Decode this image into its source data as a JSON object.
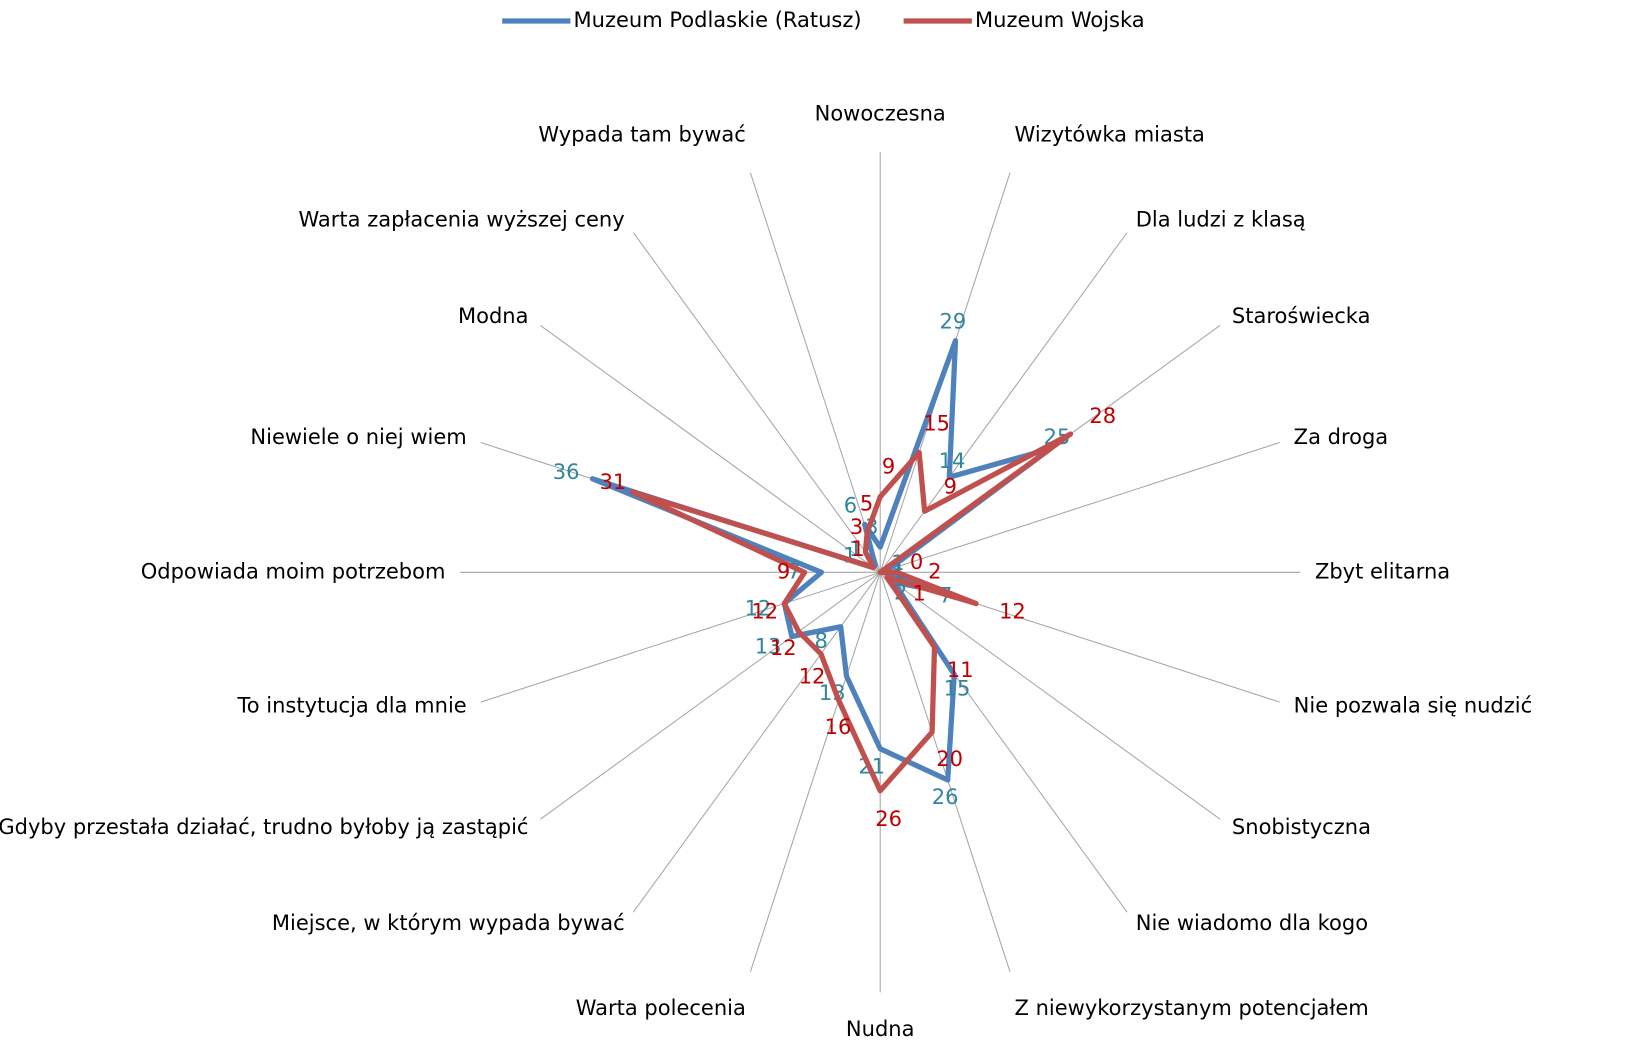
{
  "chart_data": {
    "type": "radar",
    "categories": [
      "Nowoczesna",
      "Wizytówka miasta",
      "Dla ludzi z klasą",
      "Staroświecka",
      "Za droga",
      "Zbyt elitarna",
      "Nie pozwala się nudzić",
      "Snobistyczna",
      "Nie wiadomo dla kogo",
      "Z niewykorzystanym potencjałem",
      "Nudna",
      "Warta polecenia",
      "Miejsce, w którym wypada bywać",
      "Gdyby przestała działać, trudno byłoby ją zastąpić",
      "To instytucja dla mnie",
      "Odpowiada moim potrzebom",
      "Niewiele o niej wiem",
      "Modna",
      "Warta zapłacenia wyższej ceny",
      "Wypada tam bywać"
    ],
    "series": [
      {
        "name": "Muzeum Podlaskie (Ratusz)",
        "color": "#4f81bd",
        "label_color": "#31859c",
        "values": [
          3,
          29,
          14,
          25,
          1,
          1,
          7,
          2,
          15,
          26,
          21,
          13,
          8,
          13,
          12,
          7,
          36,
          1,
          1,
          6
        ]
      },
      {
        "name": "Muzeum Wojska",
        "color": "#c0504d",
        "label_color": "#c00000",
        "values": [
          9,
          15,
          9,
          28,
          0,
          2,
          12,
          1,
          11,
          20,
          26,
          16,
          12,
          12,
          12,
          9,
          31,
          1,
          3,
          5
        ]
      }
    ],
    "ylim": [
      0,
      50
    ],
    "legend": "top"
  }
}
